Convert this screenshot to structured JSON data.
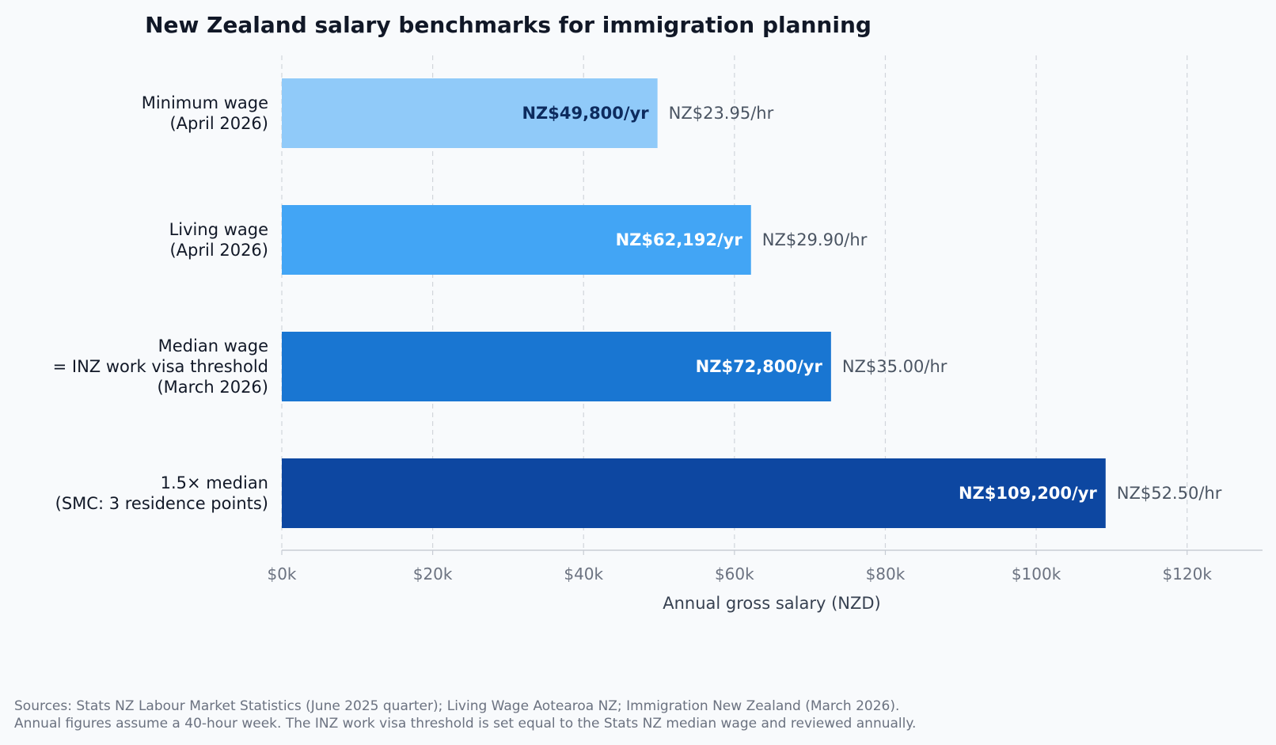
{
  "chart_data": {
    "type": "bar",
    "orientation": "horizontal",
    "title": "New Zealand salary benchmarks for immigration planning",
    "xlabel": "Annual gross salary (NZD)",
    "ylabel": "",
    "xlim": [
      0,
      130000
    ],
    "grid": "vertical dashed",
    "x_ticks": [
      {
        "value": 0,
        "label": "$0k"
      },
      {
        "value": 20000,
        "label": "$20k"
      },
      {
        "value": 40000,
        "label": "$40k"
      },
      {
        "value": 60000,
        "label": "$60k"
      },
      {
        "value": 80000,
        "label": "$80k"
      },
      {
        "value": 100000,
        "label": "$100k"
      },
      {
        "value": 120000,
        "label": "$120k"
      }
    ],
    "bars": [
      {
        "category": [
          "Minimum wage",
          "(April 2026)"
        ],
        "value": 49800,
        "annual_label": "NZ$49,800/yr",
        "hourly_label": "NZ$23.95/hr",
        "color": "#90caf9",
        "label_color": "#0d2b5e"
      },
      {
        "category": [
          "Living wage",
          "(April 2026)"
        ],
        "value": 62192,
        "annual_label": "NZ$62,192/yr",
        "hourly_label": "NZ$29.90/hr",
        "color": "#42a5f5",
        "label_color": "#ffffff"
      },
      {
        "category": [
          "Median wage",
          "= INZ work visa threshold",
          "(March 2026)"
        ],
        "value": 72800,
        "annual_label": "NZ$72,800/yr",
        "hourly_label": "NZ$35.00/hr",
        "color": "#1976d2",
        "label_color": "#ffffff"
      },
      {
        "category": [
          "1.5× median",
          "(SMC: 3 residence points)"
        ],
        "value": 109200,
        "annual_label": "NZ$109,200/yr",
        "hourly_label": "NZ$52.50/hr",
        "color": "#0d47a1",
        "label_color": "#ffffff"
      }
    ]
  },
  "footer": {
    "source_line1": "Sources: Stats NZ Labour Market Statistics (June 2025 quarter); Living Wage Aotearoa NZ; Immigration New Zealand (March 2026).",
    "source_line2": "Annual figures assume a 40-hour week. The INZ work visa threshold is set equal to the Stats NZ median wage and reviewed annually."
  }
}
